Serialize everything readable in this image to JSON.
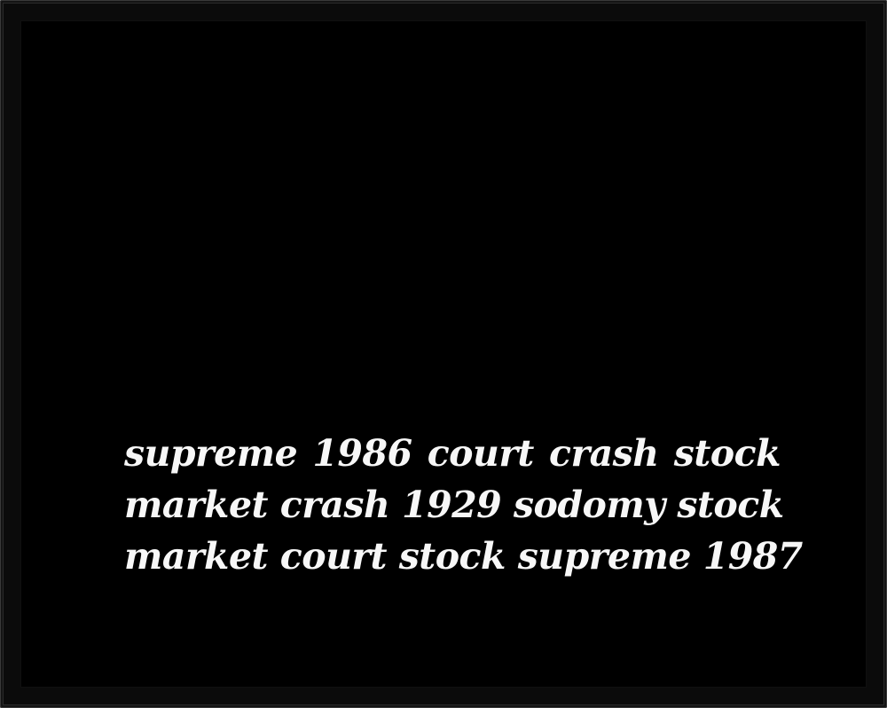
{
  "artwork": {
    "lines": [
      "supreme 1986 court crash stock",
      "market crash 1929 sodomy stock",
      "market court stock supreme 1987"
    ],
    "colors": {
      "background": "#000000",
      "text": "#f7f7f7",
      "frame": "#0b0b0b"
    }
  }
}
